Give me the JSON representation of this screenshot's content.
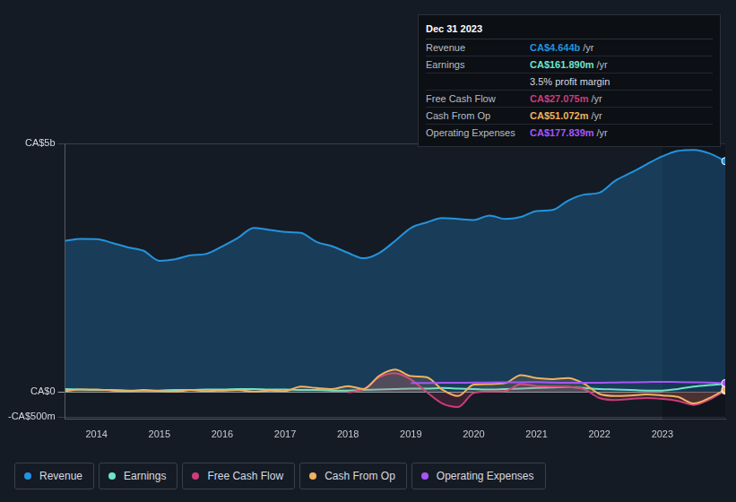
{
  "chart_data": {
    "type": "line",
    "x": [
      2013.5,
      2013.75,
      2014,
      2014.25,
      2014.5,
      2014.75,
      2015,
      2015.25,
      2015.5,
      2015.75,
      2016,
      2016.25,
      2016.5,
      2016.75,
      2017,
      2017.25,
      2017.5,
      2017.75,
      2018,
      2018.25,
      2018.5,
      2018.75,
      2019,
      2019.25,
      2019.5,
      2019.75,
      2020,
      2020.25,
      2020.5,
      2020.75,
      2021,
      2021.25,
      2021.5,
      2021.75,
      2022,
      2022.25,
      2022.5,
      2022.75,
      2023,
      2023.25,
      2023.5,
      2023.75,
      2024
    ],
    "xlim": [
      2013.5,
      2024
    ],
    "xticks": [
      2014,
      2015,
      2016,
      2017,
      2018,
      2019,
      2020,
      2021,
      2022,
      2023
    ],
    "ylim": [
      -550,
      5000
    ],
    "yticks": [
      {
        "value": -500,
        "label": "-CA$500m"
      },
      {
        "value": 0,
        "label": "CA$0"
      },
      {
        "value": 5000,
        "label": "CA$5b"
      }
    ],
    "grid": true,
    "legend": "bottom",
    "series": [
      {
        "name": "Revenue",
        "color": "#2394df",
        "values": [
          3040,
          3080,
          3077,
          3000,
          2910,
          2840,
          2640,
          2670,
          2750,
          2780,
          2930,
          3100,
          3300,
          3260,
          3220,
          3200,
          3020,
          2930,
          2800,
          2690,
          2800,
          3040,
          3300,
          3410,
          3500,
          3480,
          3460,
          3550,
          3480,
          3520,
          3640,
          3660,
          3850,
          3970,
          4010,
          4250,
          4410,
          4580,
          4740,
          4850,
          4870,
          4800,
          4644
        ]
      },
      {
        "name": "Earnings",
        "color": "#6fe3c9",
        "values": [
          60,
          50,
          40,
          40,
          30,
          30,
          30,
          40,
          40,
          50,
          50,
          60,
          60,
          50,
          50,
          40,
          40,
          30,
          30,
          40,
          50,
          60,
          70,
          70,
          80,
          70,
          60,
          50,
          60,
          70,
          80,
          90,
          100,
          80,
          60,
          50,
          40,
          30,
          30,
          60,
          110,
          140,
          161.89
        ]
      },
      {
        "name": "Free Cash Flow",
        "color": "#cc3d7a",
        "values": [
          null,
          null,
          null,
          null,
          null,
          null,
          null,
          null,
          null,
          null,
          null,
          null,
          null,
          null,
          null,
          null,
          null,
          null,
          -10,
          60,
          300,
          380,
          250,
          0,
          -230,
          -300,
          -20,
          10,
          20,
          160,
          120,
          110,
          100,
          60,
          -120,
          -160,
          -140,
          -120,
          -140,
          -180,
          -260,
          -150,
          27.075
        ]
      },
      {
        "name": "Cash From Op",
        "color": "#f0b25f",
        "values": [
          20,
          50,
          50,
          30,
          20,
          40,
          20,
          10,
          40,
          20,
          30,
          40,
          10,
          30,
          20,
          110,
          80,
          60,
          120,
          60,
          330,
          450,
          320,
          300,
          50,
          -80,
          150,
          160,
          180,
          340,
          280,
          260,
          280,
          170,
          -40,
          -80,
          -70,
          -50,
          -70,
          -100,
          -230,
          -120,
          51.072
        ]
      },
      {
        "name": "Operating Expenses",
        "color": "#a855f7",
        "values": [
          null,
          null,
          null,
          null,
          null,
          null,
          null,
          null,
          null,
          null,
          null,
          null,
          null,
          null,
          null,
          null,
          null,
          null,
          null,
          null,
          null,
          null,
          180,
          180,
          185,
          185,
          190,
          190,
          195,
          195,
          200,
          190,
          185,
          185,
          185,
          190,
          195,
          200,
          205,
          200,
          195,
          190,
          177.839
        ]
      }
    ],
    "annotation": {
      "title": "Dec 31 2023",
      "rows": [
        {
          "label": "Revenue",
          "value": "CA$4.644b",
          "suffix": "/yr"
        },
        {
          "label": "Earnings",
          "value": "CA$161.890m",
          "suffix": "/yr"
        },
        {
          "value": "3.5% profit margin"
        },
        {
          "label": "Free Cash Flow",
          "value": "CA$27.075m",
          "suffix": "/yr"
        },
        {
          "label": "Cash From Op",
          "value": "CA$51.072m",
          "suffix": "/yr"
        },
        {
          "label": "Operating Expenses",
          "value": "CA$177.839m",
          "suffix": "/yr"
        }
      ]
    }
  }
}
